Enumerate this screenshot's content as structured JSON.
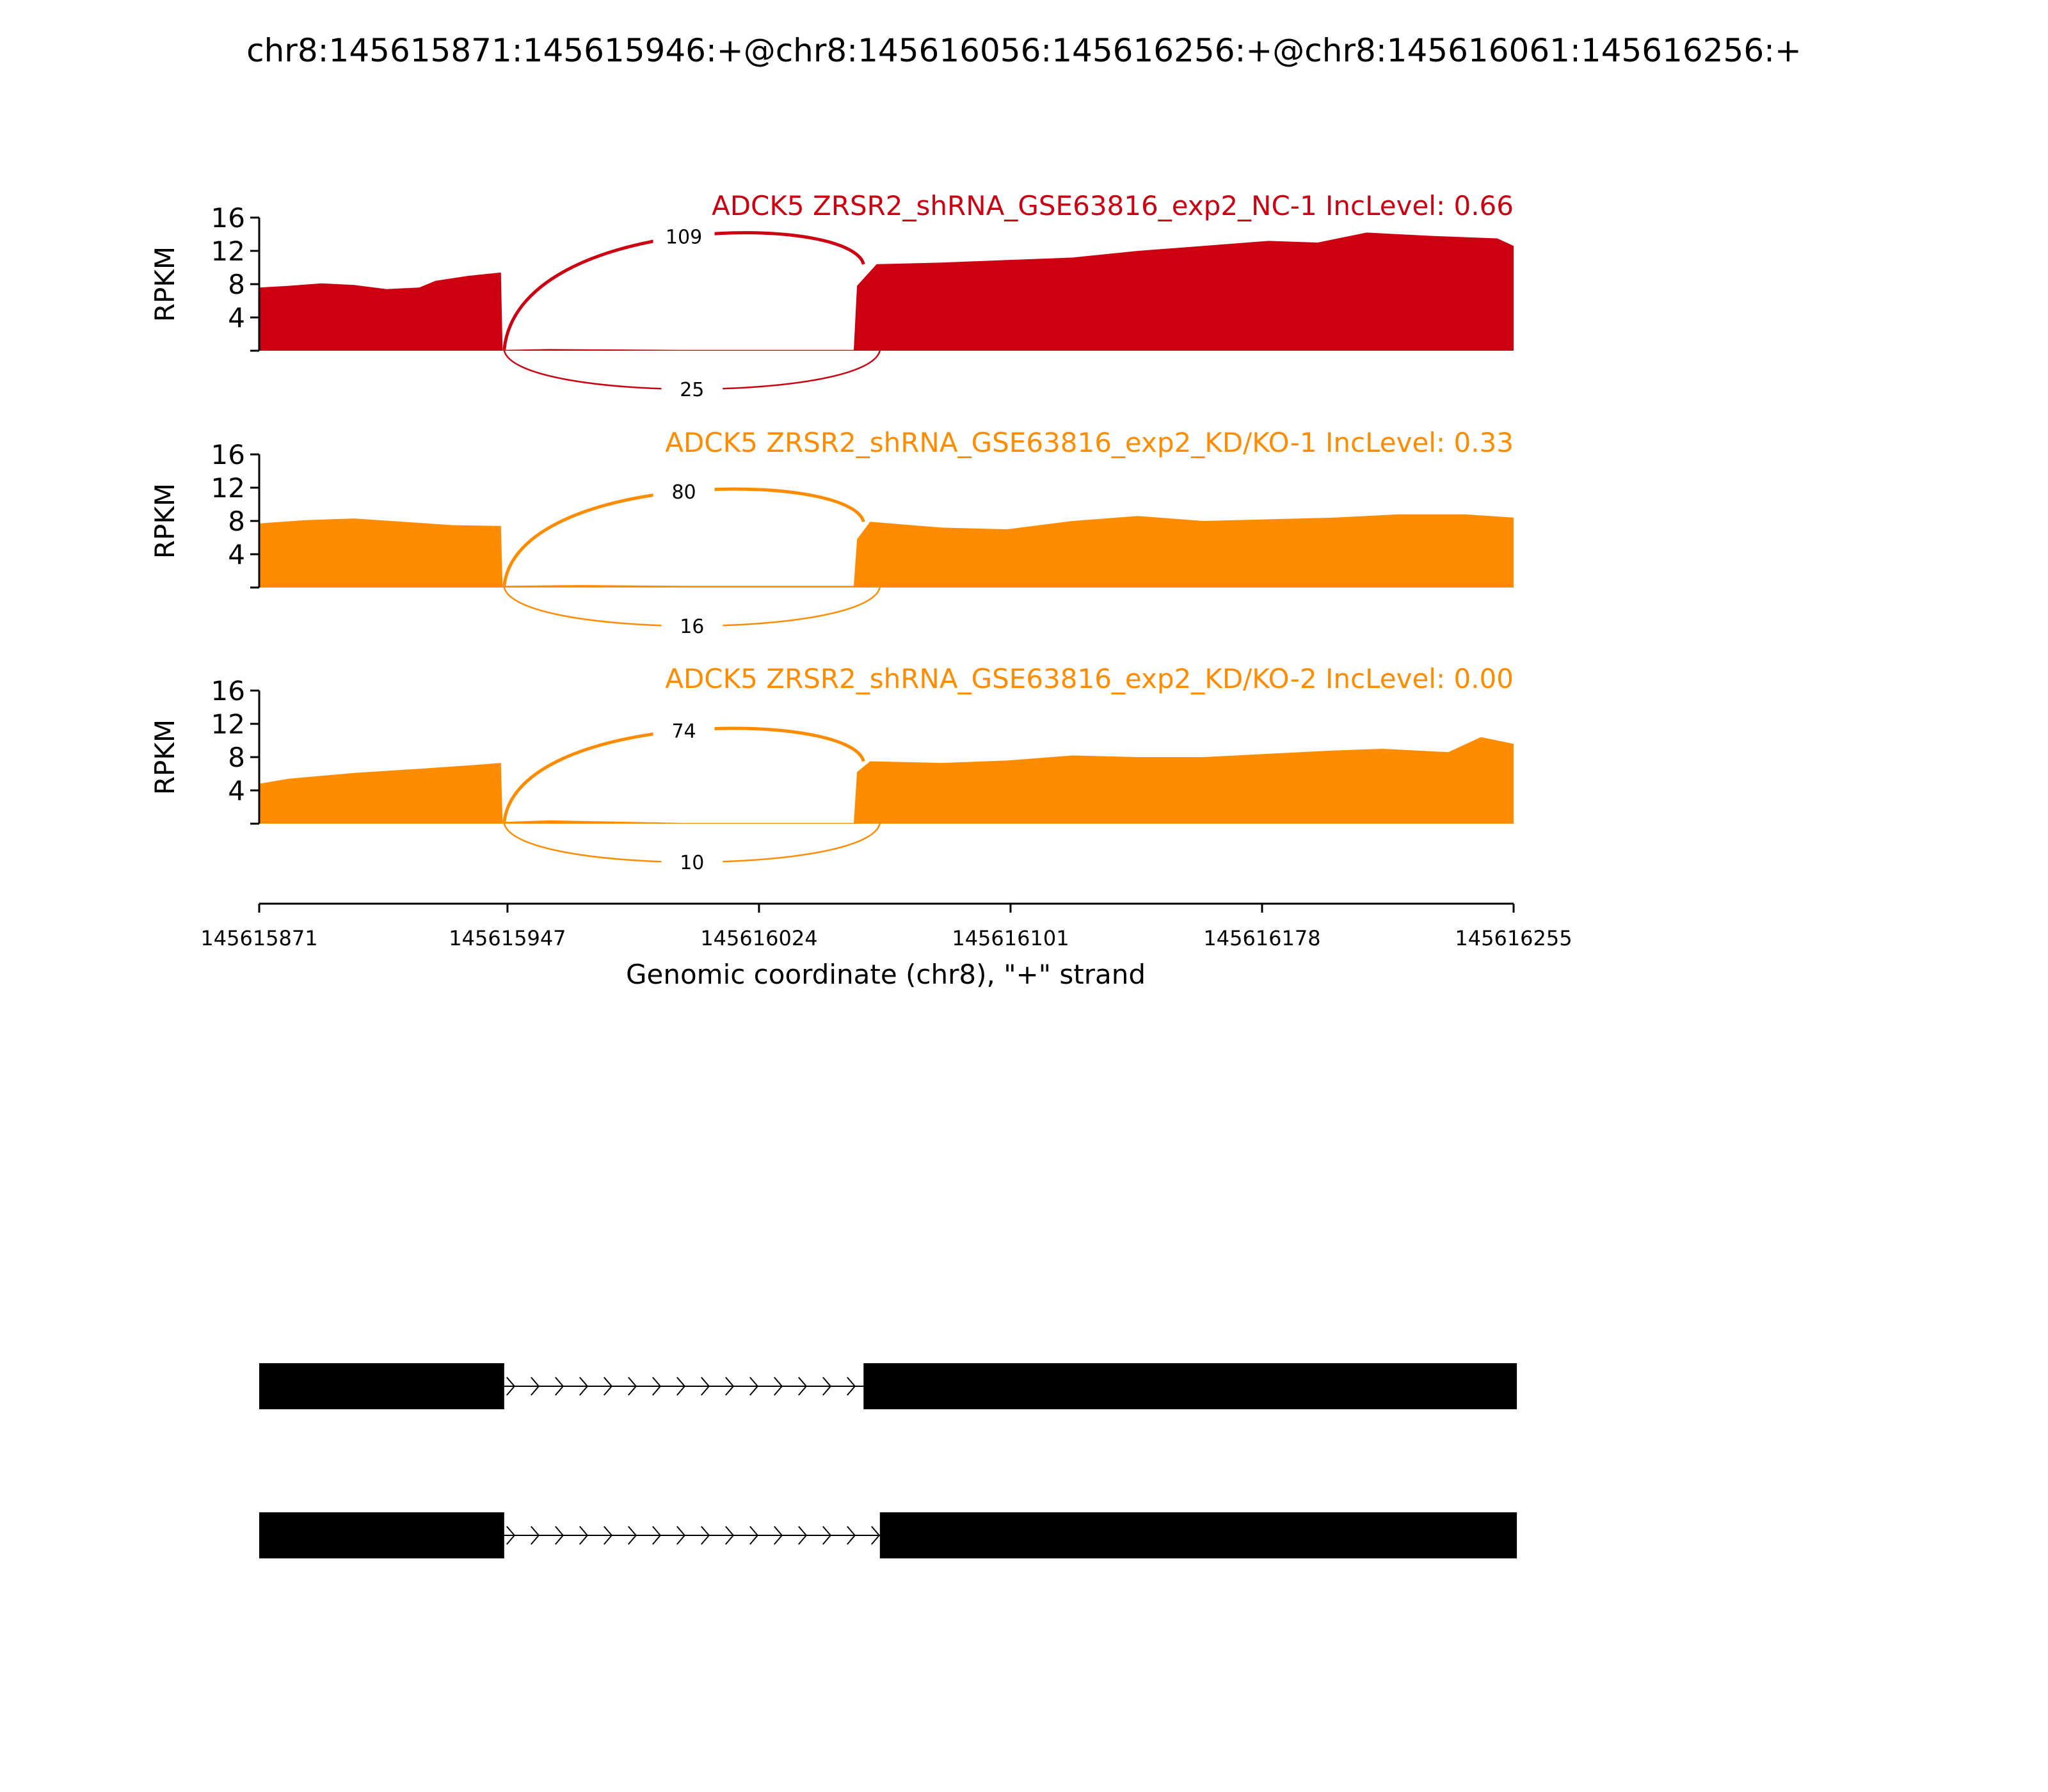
{
  "title": "chr8:145615871:145615946:+@chr8:145616056:145616256:+@chr8:145616061:145616256:+",
  "chart_data": {
    "type": "area",
    "xlabel": "Genomic coordinate (chr8), \"+\" strand",
    "xlim": [
      145615871,
      145616255
    ],
    "x_ticks": [
      "145615871",
      "145615947",
      "145616024",
      "145616101",
      "145616178",
      "145616255"
    ],
    "ylabel": "RPKM",
    "ylim": [
      0,
      16
    ],
    "y_ticks": [
      "4",
      "8",
      "12",
      "16"
    ],
    "grid": false,
    "panels": [
      {
        "label": "ADCK5 ZRSR2_shRNA_GSE63816_exp2_NC-1 IncLevel: 0.66",
        "color": "#cc0011",
        "coverage": [
          [
            145615871,
            7.6
          ],
          [
            145615880,
            7.8
          ],
          [
            145615890,
            8.1
          ],
          [
            145615900,
            7.9
          ],
          [
            145615910,
            7.4
          ],
          [
            145615920,
            7.6
          ],
          [
            145615925,
            8.4
          ],
          [
            145615935,
            9.0
          ],
          [
            145615945,
            9.4
          ],
          [
            145615945.5,
            0.1
          ],
          [
            145615960,
            0.2
          ],
          [
            145616000,
            0.1
          ],
          [
            145616040,
            0.1
          ],
          [
            145616053,
            0.1
          ],
          [
            145616054,
            7.8
          ],
          [
            145616060,
            10.4
          ],
          [
            145616080,
            10.6
          ],
          [
            145616100,
            10.9
          ],
          [
            145616120,
            11.2
          ],
          [
            145616140,
            12.0
          ],
          [
            145616160,
            12.6
          ],
          [
            145616180,
            13.2
          ],
          [
            145616195,
            13.0
          ],
          [
            145616210,
            14.2
          ],
          [
            145616230,
            13.8
          ],
          [
            145616250,
            13.5
          ],
          [
            145616255,
            12.6
          ]
        ],
        "junctions": [
          {
            "label": "109",
            "count": 109,
            "from": 145615946,
            "to": 145616056,
            "side": "above"
          },
          {
            "label": "25",
            "count": 25,
            "from": 145615946,
            "to": 145616061,
            "side": "below"
          }
        ]
      },
      {
        "label": "ADCK5 ZRSR2_shRNA_GSE63816_exp2_KD/KO-1 IncLevel: 0.33",
        "color": "#ff8c00",
        "coverage": [
          [
            145615871,
            7.7
          ],
          [
            145615885,
            8.1
          ],
          [
            145615900,
            8.3
          ],
          [
            145615915,
            7.9
          ],
          [
            145615930,
            7.5
          ],
          [
            145615945,
            7.4
          ],
          [
            145615945.5,
            0.2
          ],
          [
            145615970,
            0.3
          ],
          [
            145616000,
            0.2
          ],
          [
            145616040,
            0.2
          ],
          [
            145616053,
            0.2
          ],
          [
            145616054,
            5.8
          ],
          [
            145616058,
            7.9
          ],
          [
            145616080,
            7.2
          ],
          [
            145616100,
            7.0
          ],
          [
            145616120,
            8.0
          ],
          [
            145616140,
            8.6
          ],
          [
            145616160,
            8.0
          ],
          [
            145616180,
            8.2
          ],
          [
            145616200,
            8.4
          ],
          [
            145616220,
            8.8
          ],
          [
            145616240,
            8.8
          ],
          [
            145616255,
            8.4
          ]
        ],
        "junctions": [
          {
            "label": "80",
            "count": 80,
            "from": 145615946,
            "to": 145616056,
            "side": "above"
          },
          {
            "label": "16",
            "count": 16,
            "from": 145615946,
            "to": 145616061,
            "side": "below"
          }
        ]
      },
      {
        "label": "ADCK5 ZRSR2_shRNA_GSE63816_exp2_KD/KO-2 IncLevel: 0.00",
        "color": "#ff8c00",
        "coverage": [
          [
            145615871,
            4.8
          ],
          [
            145615880,
            5.4
          ],
          [
            145615900,
            6.1
          ],
          [
            145615920,
            6.6
          ],
          [
            145615935,
            7.0
          ],
          [
            145615945,
            7.3
          ],
          [
            145615945.5,
            0.2
          ],
          [
            145615960,
            0.4
          ],
          [
            145616000,
            0.1
          ],
          [
            145616040,
            0.1
          ],
          [
            145616053,
            0.1
          ],
          [
            145616054,
            6.2
          ],
          [
            145616058,
            7.5
          ],
          [
            145616080,
            7.3
          ],
          [
            145616100,
            7.6
          ],
          [
            145616120,
            8.2
          ],
          [
            145616140,
            8.0
          ],
          [
            145616160,
            8.0
          ],
          [
            145616180,
            8.4
          ],
          [
            145616200,
            8.8
          ],
          [
            145616215,
            9.0
          ],
          [
            145616235,
            8.6
          ],
          [
            145616245,
            10.4
          ],
          [
            145616255,
            9.6
          ]
        ],
        "junctions": [
          {
            "label": "74",
            "count": 74,
            "from": 145615946,
            "to": 145616056,
            "side": "above"
          },
          {
            "label": "10",
            "count": 10,
            "from": 145615946,
            "to": 145616061,
            "side": "below"
          }
        ]
      }
    ],
    "transcripts": [
      {
        "strand": "+",
        "exons": [
          [
            145615871,
            145615946
          ],
          [
            145616056,
            145616256
          ]
        ]
      },
      {
        "strand": "+",
        "exons": [
          [
            145615871,
            145615946
          ],
          [
            145616061,
            145616256
          ]
        ]
      }
    ]
  }
}
